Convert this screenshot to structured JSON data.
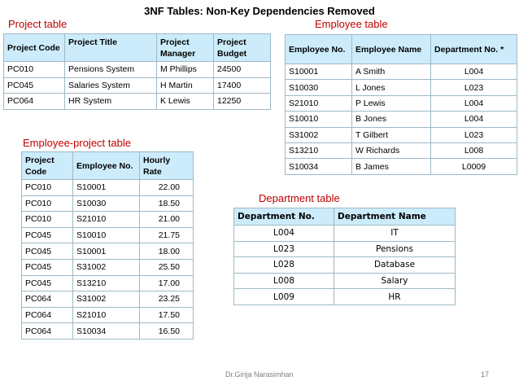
{
  "slide": {
    "title": "3NF Tables: Non-Key Dependencies Removed",
    "footer_author": "Dr.Girija Narasimhan",
    "page_number": "17"
  },
  "colors": {
    "caption": "#c00000",
    "header_bg": "#ccecfb",
    "border": "#9fb9c6"
  },
  "project": {
    "caption": "Project  table",
    "headers": [
      "Project Code",
      "Project Title",
      "Project Manager",
      "Project Budget"
    ],
    "rows": [
      [
        "PC010",
        "Pensions System",
        "M Phillips",
        "24500"
      ],
      [
        "PC045",
        "Salaries System",
        "H Martin",
        "17400"
      ],
      [
        "PC064",
        "HR System",
        "K Lewis",
        "12250"
      ]
    ]
  },
  "employee": {
    "caption": "Employee table",
    "headers": [
      "Employee No.",
      "Employee Name",
      "Department No. *"
    ],
    "rows": [
      [
        "S10001",
        "A Smith",
        "L004"
      ],
      [
        "S10030",
        "L Jones",
        "L023"
      ],
      [
        "S21010",
        "P Lewis",
        "L004"
      ],
      [
        "S10010",
        "B Jones",
        "L004"
      ],
      [
        "S31002",
        "T Gilbert",
        "L023"
      ],
      [
        "S13210",
        "W Richards",
        "L008"
      ],
      [
        "S10034",
        "B James",
        "L0009"
      ]
    ]
  },
  "employee_project": {
    "caption": "Employee-project  table",
    "headers": [
      "Project Code",
      "Employee No.",
      "Hourly Rate"
    ],
    "rows": [
      [
        "PC010",
        "S10001",
        "22.00"
      ],
      [
        "PC010",
        "S10030",
        "18.50"
      ],
      [
        "PC010",
        "S21010",
        "21.00"
      ],
      [
        "PC045",
        "S10010",
        "21.75"
      ],
      [
        "PC045",
        "S10001",
        "18.00"
      ],
      [
        "PC045",
        "S31002",
        "25.50"
      ],
      [
        "PC045",
        "S13210",
        "17.00"
      ],
      [
        "PC064",
        "S31002",
        "23.25"
      ],
      [
        "PC064",
        "S21010",
        "17.50"
      ],
      [
        "PC064",
        "S10034",
        "16.50"
      ]
    ]
  },
  "department": {
    "caption": "Department  table",
    "headers": [
      "Department No.",
      "Department Name"
    ],
    "rows": [
      [
        "L004",
        "IT"
      ],
      [
        "L023",
        "Pensions"
      ],
      [
        "L028",
        "Database"
      ],
      [
        "L008",
        "Salary"
      ],
      [
        "L009",
        "HR"
      ]
    ]
  }
}
